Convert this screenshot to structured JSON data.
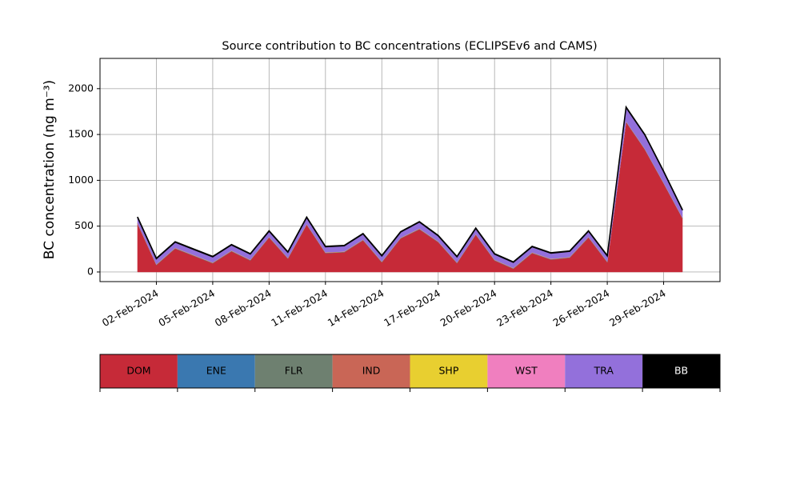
{
  "chart_data": {
    "type": "stacked_area",
    "title": "Source contribution to BC concentrations (ECLIPSEv6 and CAMS)",
    "y_label": "BC concentration (ng m⁻³)",
    "x": [
      "01-Feb-2024",
      "02-Feb-2024",
      "03-Feb-2024",
      "04-Feb-2024",
      "05-Feb-2024",
      "06-Feb-2024",
      "07-Feb-2024",
      "08-Feb-2024",
      "09-Feb-2024",
      "10-Feb-2024",
      "11-Feb-2024",
      "12-Feb-2024",
      "13-Feb-2024",
      "14-Feb-2024",
      "15-Feb-2024",
      "16-Feb-2024",
      "17-Feb-2024",
      "18-Feb-2024",
      "19-Feb-2024",
      "20-Feb-2024",
      "21-Feb-2024",
      "22-Feb-2024",
      "23-Feb-2024",
      "24-Feb-2024",
      "25-Feb-2024",
      "26-Feb-2024",
      "27-Feb-2024",
      "28-Feb-2024",
      "29-Feb-2024",
      "01-Mar-2024"
    ],
    "series": [
      {
        "name": "DOM",
        "color": "#c62a38",
        "values": [
          525,
          75,
          255,
          175,
          95,
          225,
          125,
          375,
          145,
          515,
          205,
          215,
          345,
          105,
          365,
          465,
          325,
          95,
          405,
          125,
          35,
          205,
          135,
          155,
          375,
          105,
          1635,
          1335,
          965,
          585
        ]
      },
      {
        "name": "ENE",
        "color": "#3a78b0",
        "values": [
          2,
          2,
          2,
          2,
          2,
          2,
          2,
          2,
          2,
          2,
          2,
          2,
          2,
          2,
          2,
          2,
          2,
          2,
          2,
          2,
          2,
          2,
          2,
          2,
          2,
          2,
          2,
          2,
          2,
          2
        ]
      },
      {
        "name": "FLR",
        "color": "#6e8070",
        "values": [
          2,
          2,
          2,
          2,
          2,
          2,
          2,
          2,
          2,
          2,
          2,
          2,
          2,
          2,
          2,
          2,
          2,
          2,
          2,
          2,
          2,
          2,
          2,
          2,
          2,
          2,
          2,
          2,
          2,
          2
        ]
      },
      {
        "name": "IND",
        "color": "#c96656",
        "values": [
          2,
          2,
          2,
          2,
          2,
          2,
          2,
          2,
          2,
          2,
          2,
          2,
          2,
          2,
          2,
          2,
          2,
          2,
          2,
          2,
          2,
          2,
          2,
          2,
          2,
          2,
          2,
          2,
          2,
          2
        ]
      },
      {
        "name": "SHP",
        "color": "#e8cf30",
        "values": [
          2,
          2,
          2,
          2,
          2,
          2,
          2,
          2,
          2,
          2,
          2,
          2,
          2,
          2,
          2,
          2,
          2,
          2,
          2,
          2,
          2,
          2,
          2,
          2,
          2,
          2,
          2,
          2,
          2,
          2
        ]
      },
      {
        "name": "WST",
        "color": "#f07fbf",
        "values": [
          2,
          2,
          2,
          2,
          2,
          2,
          2,
          2,
          2,
          2,
          2,
          2,
          2,
          2,
          2,
          2,
          2,
          2,
          2,
          2,
          2,
          2,
          2,
          2,
          2,
          2,
          2,
          2,
          2,
          2
        ]
      },
      {
        "name": "TRA",
        "color": "#9370db",
        "values": [
          60,
          60,
          60,
          60,
          60,
          60,
          60,
          60,
          60,
          70,
          60,
          60,
          60,
          60,
          60,
          70,
          60,
          60,
          60,
          60,
          60,
          60,
          60,
          60,
          60,
          60,
          150,
          150,
          120,
          80
        ]
      },
      {
        "name": "BB",
        "color": "#000000",
        "values": [
          5,
          5,
          5,
          5,
          5,
          5,
          5,
          5,
          5,
          5,
          5,
          5,
          5,
          5,
          5,
          5,
          5,
          5,
          5,
          5,
          5,
          5,
          5,
          5,
          5,
          5,
          5,
          5,
          5,
          5
        ]
      }
    ],
    "xlim": [
      "30-Jan-2024",
      "03-Mar-2024"
    ],
    "xticks": [
      "02-Feb-2024",
      "05-Feb-2024",
      "08-Feb-2024",
      "11-Feb-2024",
      "14-Feb-2024",
      "17-Feb-2024",
      "20-Feb-2024",
      "23-Feb-2024",
      "26-Feb-2024",
      "29-Feb-2024"
    ],
    "ylim": [
      -105,
      2330
    ],
    "yticks": [
      0,
      500,
      1000,
      1500,
      2000
    ],
    "grid": true
  }
}
